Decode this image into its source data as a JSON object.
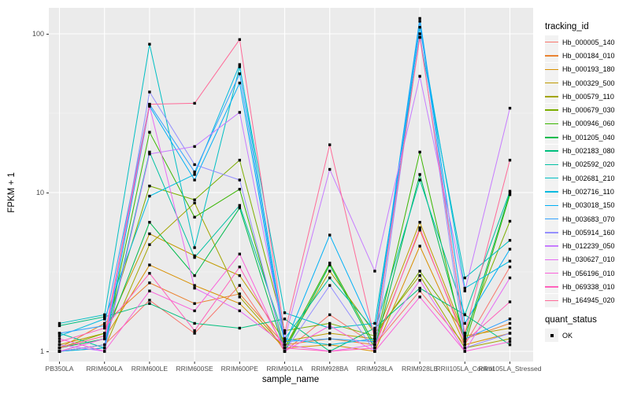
{
  "chart_data": {
    "type": "line",
    "title": "",
    "xlabel": "sample_name",
    "ylabel": "FPKM + 1",
    "y_scale": "log10",
    "y_ticks": [
      1,
      10,
      100
    ],
    "y_minor_ticks": [
      3.162,
      31.62
    ],
    "ylim": [
      1,
      145
    ],
    "grid": true,
    "panel_bg": "#EBEBEB",
    "grid_color": "#FFFFFF",
    "axis_text_color": "#4D4D4D",
    "point_marker": {
      "shape": "square",
      "color": "#000000"
    },
    "legend_position": "right",
    "categories": [
      "PB350LA",
      "RRIM600LA",
      "RRIM600LE",
      "RRIM600SE",
      "RRIM600PE",
      "RRIM901LA",
      "RRIM928BA",
      "RRIM928LA",
      "RRIM928LE",
      "RRII105LA_Control",
      "RRII105LA_Stressed"
    ],
    "series": [
      {
        "name": "Hb_000005_140",
        "color": "#F8766D",
        "values": [
          1.0,
          1.1,
          2.1,
          1.3,
          2.6,
          1.0,
          1.7,
          1.1,
          2.4,
          1.1,
          3.4
        ]
      },
      {
        "name": "Hb_000184_010",
        "color": "#EA8331",
        "values": [
          1.05,
          1.5,
          2.7,
          2.0,
          2.3,
          1.1,
          1.2,
          1.1,
          5.8,
          1.2,
          1.5
        ]
      },
      {
        "name": "Hb_000193_180",
        "color": "#D89000",
        "values": [
          1.0,
          1.2,
          3.5,
          2.6,
          2.0,
          1.05,
          1.1,
          1.0,
          4.6,
          1.1,
          1.3
        ]
      },
      {
        "name": "Hb_000329_500",
        "color": "#C09B00",
        "values": [
          1.1,
          1.3,
          5.5,
          4.0,
          3.0,
          1.16,
          1.3,
          1.2,
          6.5,
          1.25,
          1.4
        ]
      },
      {
        "name": "Hb_000579_110",
        "color": "#A3A500",
        "values": [
          1.0,
          1.05,
          4.7,
          8.6,
          2.2,
          1.05,
          3.2,
          1.3,
          3.0,
          1.05,
          1.2
        ]
      },
      {
        "name": "Hb_000679_030",
        "color": "#7CAE00",
        "values": [
          1.05,
          1.3,
          11,
          9.0,
          16,
          1.35,
          1.5,
          1.25,
          3.2,
          1.3,
          6.6
        ]
      },
      {
        "name": "Hb_000946_060",
        "color": "#39B600",
        "values": [
          1.0,
          1.1,
          24,
          7.0,
          10.5,
          1.05,
          3.6,
          1.1,
          18,
          1.1,
          9.7
        ]
      },
      {
        "name": "Hb_001205_040",
        "color": "#00BB4E",
        "values": [
          1.05,
          1.2,
          6.5,
          3.0,
          8.0,
          1.0,
          3.5,
          1.05,
          13,
          1.2,
          10.0
        ]
      },
      {
        "name": "Hb_002183_080",
        "color": "#00BF7D",
        "values": [
          1.45,
          1.65,
          2.0,
          1.5,
          1.4,
          1.6,
          1.0,
          1.4,
          2.5,
          1.7,
          1.1
        ]
      },
      {
        "name": "Hb_002592_020",
        "color": "#00C1A3",
        "values": [
          1.3,
          1.05,
          18,
          3.9,
          8.3,
          1.2,
          2.9,
          1.35,
          12,
          1.7,
          10.2
        ]
      },
      {
        "name": "Hb_002681_210",
        "color": "#00BFC4",
        "values": [
          1.5,
          1.7,
          86,
          4.5,
          62,
          1.75,
          1.4,
          1.5,
          95,
          2.9,
          5.0
        ]
      },
      {
        "name": "Hb_002716_110",
        "color": "#00BAE0",
        "values": [
          1.25,
          1.6,
          9.5,
          13,
          64,
          1.2,
          1.1,
          1.2,
          110,
          2.5,
          3.7
        ]
      },
      {
        "name": "Hb_003018_150",
        "color": "#00B0F6",
        "values": [
          1.0,
          1.05,
          35,
          12,
          49,
          1.1,
          5.4,
          1.3,
          125,
          1.5,
          4.4
        ]
      },
      {
        "name": "Hb_003683_070",
        "color": "#35A2FF",
        "values": [
          1.3,
          1.45,
          36,
          13.5,
          56,
          1.15,
          1.2,
          1.15,
          120,
          1.2,
          1.6
        ]
      },
      {
        "name": "Hb_005914_160",
        "color": "#9590FF",
        "values": [
          1.0,
          1.1,
          43,
          15,
          12,
          1.0,
          2.6,
          1.0,
          100,
          1.05,
          1.3
        ]
      },
      {
        "name": "Hb_012239_050",
        "color": "#C77CFF",
        "values": [
          1.1,
          1.0,
          17.5,
          19.5,
          32,
          1.2,
          14,
          3.2,
          54,
          2.4,
          34
        ]
      },
      {
        "name": "Hb_030627_010",
        "color": "#E76BF3",
        "values": [
          1.0,
          1.2,
          35,
          2.5,
          1.8,
          1.1,
          1.0,
          1.1,
          2.8,
          1.0,
          2.9
        ]
      },
      {
        "name": "Hb_056196_010",
        "color": "#FA62DB",
        "values": [
          1.2,
          1.0,
          2.4,
          1.8,
          4.1,
          1.0,
          1.45,
          1.0,
          2.2,
          1.0,
          1.15
        ]
      },
      {
        "name": "Hb_069338_010",
        "color": "#FF62BC",
        "values": [
          1.15,
          1.4,
          3.1,
          1.35,
          3.4,
          1.05,
          1.0,
          1.05,
          6.0,
          1.15,
          2.05
        ]
      },
      {
        "name": "Hb_164945_020",
        "color": "#FF6A98",
        "values": [
          1.05,
          1.25,
          36,
          36.5,
          92,
          1.3,
          20,
          1.2,
          95,
          1.3,
          16
        ]
      }
    ],
    "legend": {
      "tracking_title": "tracking_id",
      "quant_title": "quant_status",
      "quant_items": [
        {
          "label": "OK",
          "marker": "black-square"
        }
      ]
    }
  }
}
